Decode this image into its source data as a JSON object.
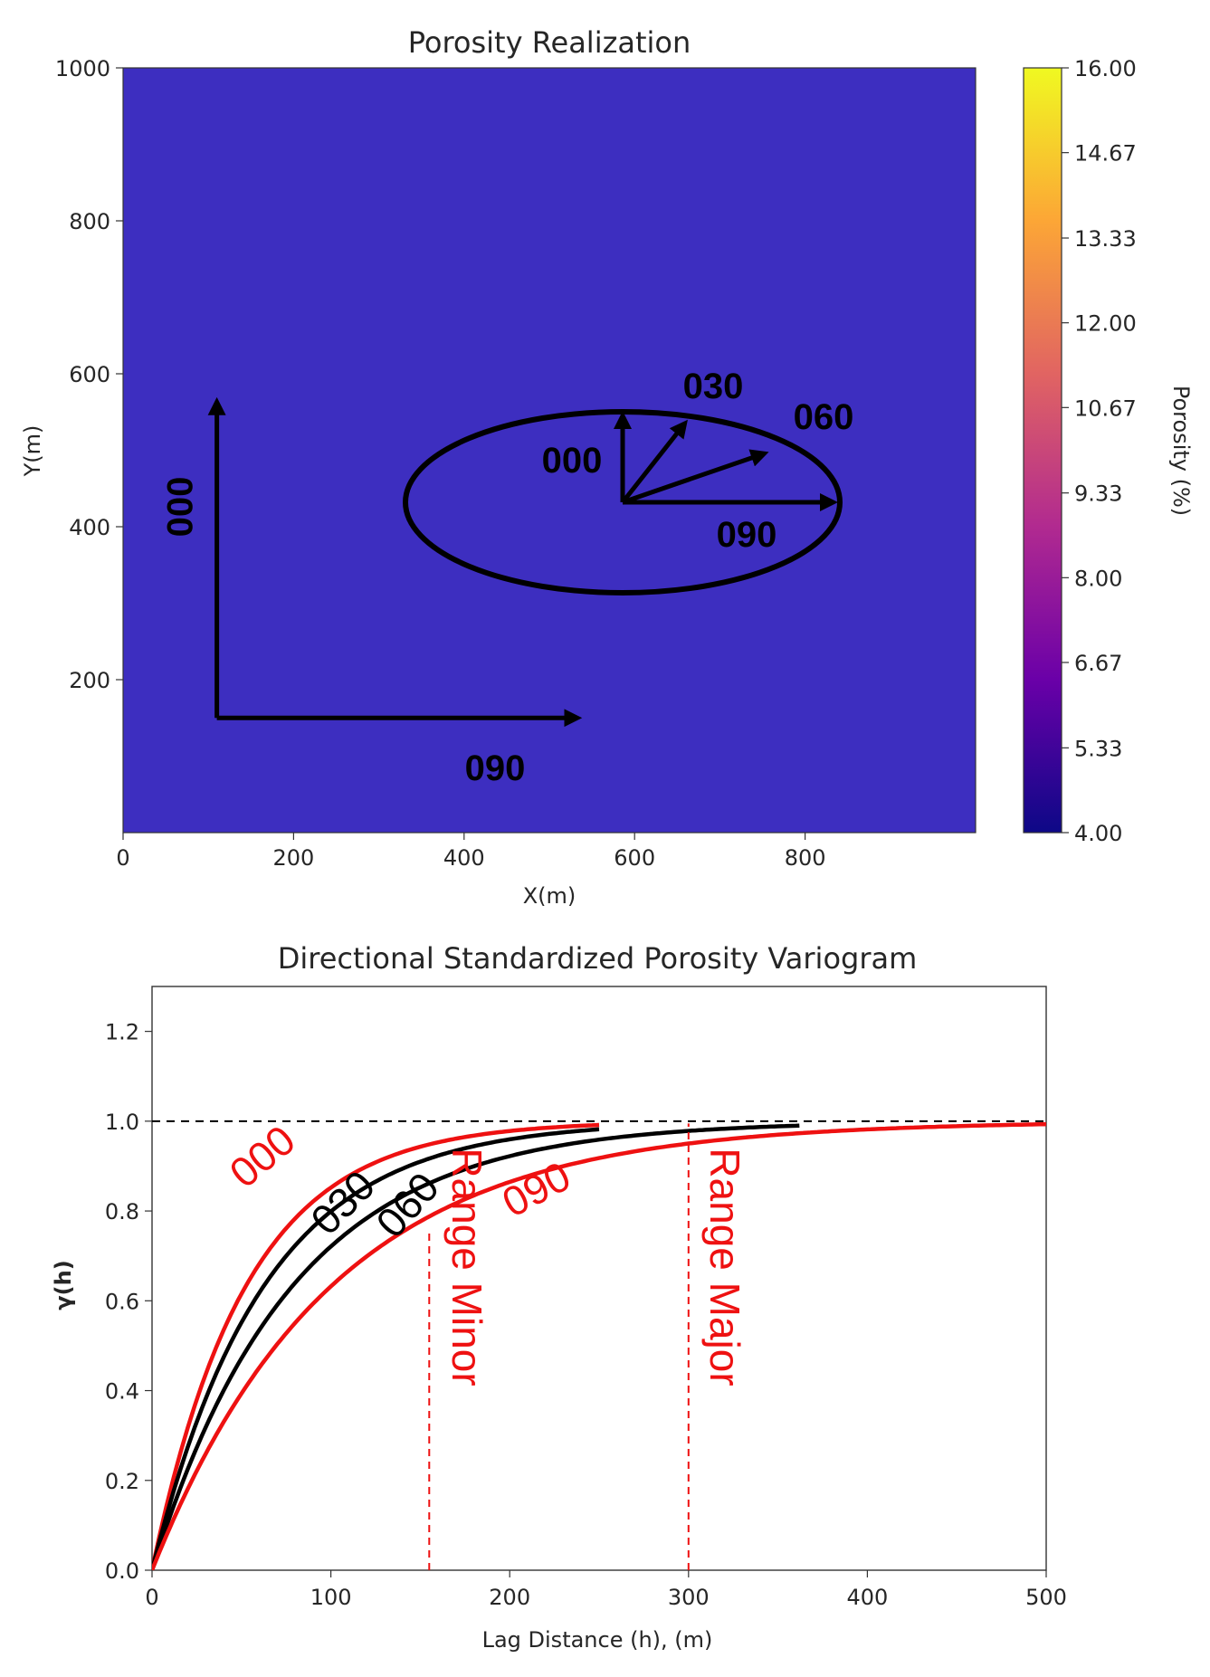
{
  "chart_data": [
    {
      "type": "heatmap",
      "title": "Porosity Realization",
      "xlabel": "X(m)",
      "ylabel": "Y(m)",
      "xlim": [
        0,
        1000
      ],
      "ylim": [
        0,
        1000
      ],
      "xticks": [
        "0",
        "200",
        "400",
        "600",
        "800"
      ],
      "yticks": [
        "200",
        "400",
        "600",
        "800",
        "1000"
      ],
      "colorbar": {
        "label": "Porosity (%)",
        "range": [
          4.0,
          16.0
        ],
        "ticks": [
          "4.00",
          "5.33",
          "6.67",
          "8.00",
          "9.33",
          "10.67",
          "12.00",
          "13.33",
          "14.67",
          "16.00"
        ],
        "colormap": [
          "#0d0887",
          "#6a00a8",
          "#b12a90",
          "#e16462",
          "#fca636",
          "#f0f921"
        ]
      },
      "annotations": {
        "axis_arrows": [
          {
            "label": "000",
            "from": [
              110,
              150
            ],
            "to": [
              110,
              560
            ]
          },
          {
            "label": "090",
            "from": [
              110,
              150
            ],
            "to": [
              530,
              150
            ]
          }
        ],
        "ellipse": {
          "center": [
            580,
            430
          ],
          "semi_major": 260,
          "semi_minor": 120
        },
        "direction_arrows": [
          {
            "label": "000",
            "to": [
              580,
              550
            ]
          },
          {
            "label": "030",
            "to": [
              655,
              550
            ]
          },
          {
            "label": "060",
            "to": [
              760,
              530
            ]
          },
          {
            "label": "090",
            "to": [
              855,
              430
            ]
          }
        ]
      }
    },
    {
      "type": "line",
      "title": "Directional Standardized Porosity Variogram",
      "xlabel": "Lag Distance (h), (m)",
      "ylabel": "γ(h)",
      "xlim": [
        0,
        500
      ],
      "ylim": [
        0,
        1.3
      ],
      "xticks": [
        "0",
        "100",
        "200",
        "300",
        "400",
        "500"
      ],
      "yticks": [
        "0.0",
        "0.2",
        "0.4",
        "0.6",
        "0.8",
        "1.0",
        "1.2"
      ],
      "sill": 1.0,
      "series": [
        {
          "name": "000",
          "color": "#ee1111",
          "range": 157,
          "x_end": 250
        },
        {
          "name": "030",
          "color": "#000000",
          "range": 187,
          "x_end": 250
        },
        {
          "name": "060",
          "color": "#000000",
          "range": 235,
          "x_end": 362
        },
        {
          "name": "090",
          "color": "#ee1111",
          "range": 300,
          "x_end": 500
        }
      ],
      "reference_lines": [
        {
          "label": "Range Minor",
          "x": 155,
          "color": "#ee1111"
        },
        {
          "label": "Range Major",
          "x": 300,
          "color": "#ee1111"
        }
      ]
    }
  ]
}
